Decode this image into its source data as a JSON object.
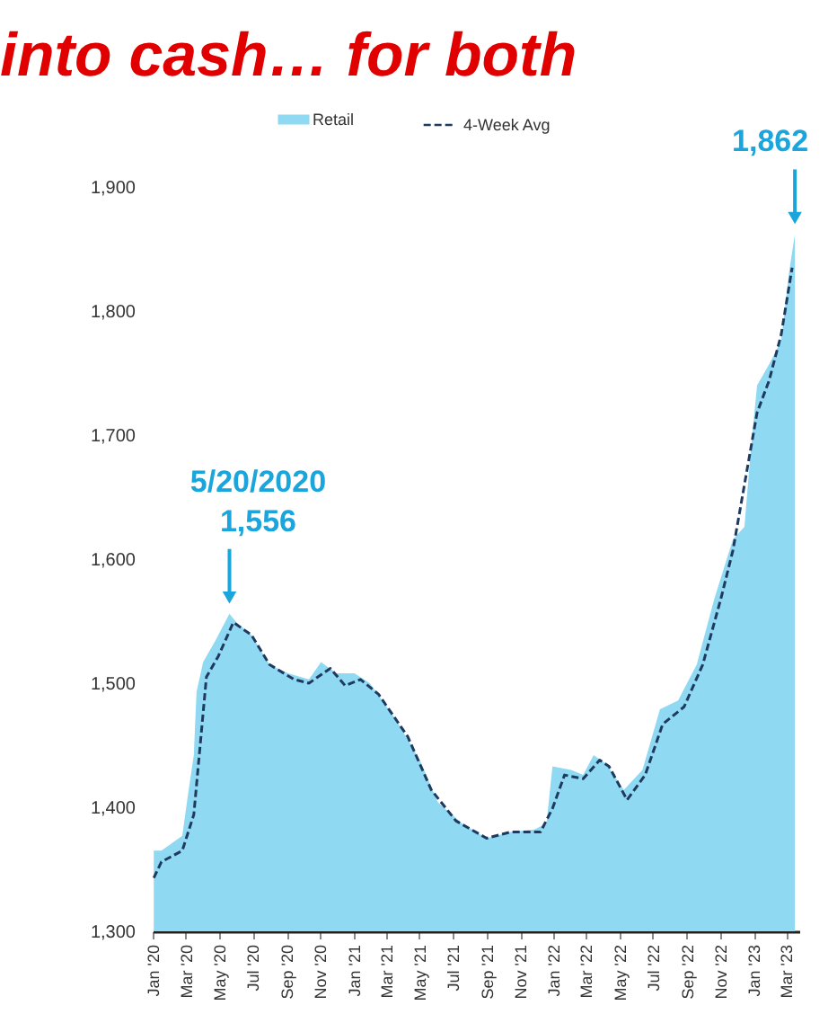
{
  "chart_data": {
    "type": "area",
    "title": "into cash… for both",
    "series": [
      {
        "name": "Retail",
        "color": "#90d9f2",
        "x": [
          "2020-01-03",
          "2020-01-17",
          "2020-02-24",
          "2020-03-05",
          "2020-03-16",
          "2020-03-21",
          "2020-04-02",
          "2020-04-24",
          "2020-05-20",
          "2020-06-02",
          "2020-06-29",
          "2020-08-01",
          "2020-09-04",
          "2020-10-12",
          "2020-11-03",
          "2020-12-01",
          "2021-01-03",
          "2021-01-31",
          "2021-03-19",
          "2021-05-02",
          "2021-06-04",
          "2021-07-18",
          "2021-09-01",
          "2021-10-14",
          "2021-11-27",
          "2021-12-19",
          "2021-12-30",
          "2022-02-02",
          "2022-02-24",
          "2022-03-15",
          "2022-04-07",
          "2022-05-09",
          "2022-06-12",
          "2022-07-14",
          "2022-08-16",
          "2022-09-19",
          "2022-10-21",
          "2022-11-24",
          "2022-12-15",
          "2022-12-26",
          "2023-01-07",
          "2023-01-29",
          "2023-02-20",
          "2023-03-06",
          "2023-03-17"
        ],
        "values": [
          1365,
          1365,
          1377,
          1409,
          1442,
          1493,
          1517,
          1534,
          1556,
          1549,
          1539,
          1515,
          1508,
          1503,
          1517,
          1508,
          1508,
          1500,
          1471,
          1438,
          1404,
          1387,
          1375,
          1380,
          1382,
          1387,
          1433,
          1430,
          1426,
          1442,
          1435,
          1414,
          1430,
          1479,
          1486,
          1515,
          1568,
          1616,
          1626,
          1685,
          1740,
          1757,
          1776,
          1830,
          1862
        ]
      },
      {
        "name": "4-Week Avg",
        "type": "line",
        "color": "#1f3a5f",
        "line_style": "dashed",
        "x": [
          "2020-01-03",
          "2020-01-17",
          "2020-02-24",
          "2020-03-16",
          "2020-04-08",
          "2020-04-30",
          "2020-05-27",
          "2020-06-29",
          "2020-08-01",
          "2020-09-15",
          "2020-10-12",
          "2020-11-20",
          "2020-12-17",
          "2021-01-14",
          "2021-02-16",
          "2021-04-10",
          "2021-05-23",
          "2021-07-07",
          "2021-09-01",
          "2021-10-14",
          "2021-12-08",
          "2021-12-30",
          "2022-01-21",
          "2022-02-24",
          "2022-03-26",
          "2022-04-12",
          "2022-05-15",
          "2022-06-17",
          "2022-07-19",
          "2022-08-27",
          "2022-09-30",
          "2022-11-02",
          "2022-11-24",
          "2023-01-07",
          "2023-01-29",
          "2023-02-20",
          "2023-03-12"
        ],
        "values": [
          1343,
          1356,
          1365,
          1394,
          1505,
          1522,
          1549,
          1539,
          1515,
          1503,
          1500,
          1512,
          1498,
          1503,
          1491,
          1457,
          1414,
          1389,
          1375,
          1380,
          1380,
          1399,
          1426,
          1423,
          1438,
          1433,
          1406,
          1426,
          1467,
          1481,
          1515,
          1568,
          1607,
          1718,
          1744,
          1781,
          1835
        ]
      }
    ],
    "xlim": [
      "2020-01-01",
      "2023-03-25"
    ],
    "xticks": [
      {
        "value": "2020-01",
        "label": "Jan '20"
      },
      {
        "value": "2020-03",
        "label": "Mar '20"
      },
      {
        "value": "2020-05",
        "label": "May '20"
      },
      {
        "value": "2020-07",
        "label": "Jul '20"
      },
      {
        "value": "2020-09",
        "label": "Sep '20"
      },
      {
        "value": "2020-11",
        "label": "Nov '20"
      },
      {
        "value": "2021-01",
        "label": "Jan '21"
      },
      {
        "value": "2021-03",
        "label": "Mar '21"
      },
      {
        "value": "2021-05",
        "label": "May '21"
      },
      {
        "value": "2021-07",
        "label": "Jul '21"
      },
      {
        "value": "2021-09",
        "label": "Sep '21"
      },
      {
        "value": "2021-11",
        "label": "Nov '21"
      },
      {
        "value": "2022-01",
        "label": "Jan '22"
      },
      {
        "value": "2022-03",
        "label": "Mar '22"
      },
      {
        "value": "2022-05",
        "label": "May '22"
      },
      {
        "value": "2022-07",
        "label": "Jul '22"
      },
      {
        "value": "2022-09",
        "label": "Sep '22"
      },
      {
        "value": "2022-11",
        "label": "Nov '22"
      },
      {
        "value": "2023-01",
        "label": "Jan '23"
      },
      {
        "value": "2023-03",
        "label": "Mar '23"
      }
    ],
    "ylim": [
      1300,
      1900
    ],
    "yticks": [
      {
        "value": 1300,
        "label": "1,300"
      },
      {
        "value": 1400,
        "label": "1,400"
      },
      {
        "value": 1500,
        "label": "1,500"
      },
      {
        "value": 1600,
        "label": "1,600"
      },
      {
        "value": 1700,
        "label": "1,700"
      },
      {
        "value": 1800,
        "label": "1,800"
      },
      {
        "value": 1900,
        "label": "1,900"
      }
    ],
    "grid": false,
    "legend": "top",
    "annotations": [
      {
        "text": "5/20/2020 1,556",
        "x": "2020-05-20",
        "y": 1556
      },
      {
        "text": "1,862",
        "x": "2023-03-17",
        "y": 1862
      }
    ]
  }
}
